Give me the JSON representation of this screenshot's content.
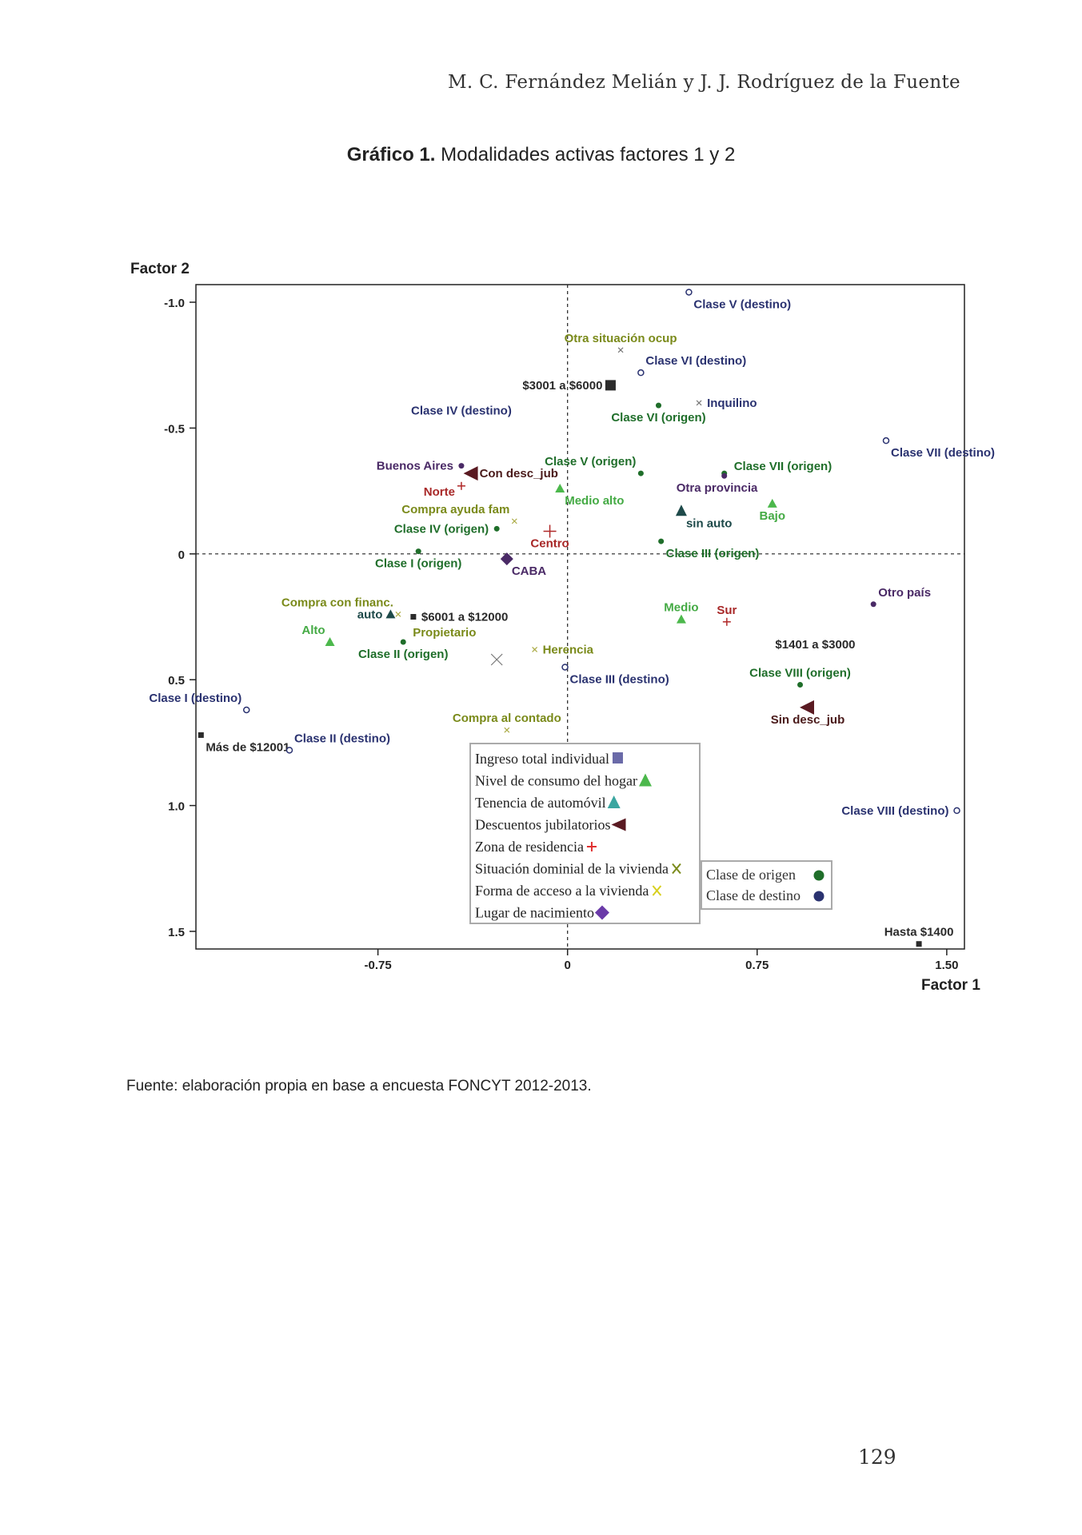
{
  "header": {
    "running_head": "M. C. Fernández Melián y J. J. Rodríguez de la Fuente"
  },
  "figure": {
    "label": "Gráfico 1.",
    "caption": "Modalidades activas factores 1 y 2"
  },
  "source": "Fuente: elaboración propia en base a encuesta FONCYT 2012-2013.",
  "page_number": "129",
  "colors": {
    "ingreso": "#2b2b2b",
    "consumo": "#4cb84c",
    "automovil": "#1e4a4a",
    "descuentos": "#5a1a22",
    "zona": "#b02828",
    "situacion": "#777777",
    "forma": "#aaaa44",
    "nacimiento": "#4a2a66",
    "origen": "#1f6e2a",
    "destino": "#2a3270",
    "label_olive": "#7a8a1a",
    "label_green": "#44aa44",
    "label_red": "#a82828",
    "label_dark": "#2a2a2a",
    "label_teal": "#1e4a4a",
    "label_purple": "#4a2a66",
    "label_maroon": "#4a1a1a"
  },
  "chart_data": {
    "type": "scatter",
    "xlabel": "Factor 1",
    "ylabel": "Factor 2",
    "xlim": [
      -1.47,
      1.57
    ],
    "ylim": [
      -1.07,
      1.57
    ],
    "y_inverted": true,
    "xticks": [
      -0.75,
      0,
      0.75,
      1.5
    ],
    "xtick_labels": [
      "-0.75",
      "0",
      "0.75",
      "1.50"
    ],
    "yticks": [
      -1.0,
      -0.5,
      0,
      0.5,
      1.0,
      1.5
    ],
    "ytick_labels": [
      "-1.0",
      "-0.5",
      "0",
      "0.5",
      "1.0",
      "1.5"
    ],
    "reference_lines": [
      0,
      0
    ],
    "points": [
      {
        "label": "Clase V (destino)",
        "x": 0.48,
        "y": -1.04,
        "group": "destino",
        "marker": "open-circle",
        "label_color": "destino",
        "anchor": "below-right"
      },
      {
        "label": "Otra situación ocup",
        "x": 0.21,
        "y": -0.81,
        "group": "situacion",
        "marker": "x-small",
        "label_color": "label_olive",
        "anchor": "above"
      },
      {
        "label": "Clase VI (destino)",
        "x": 0.29,
        "y": -0.72,
        "group": "destino",
        "marker": "open-circle",
        "label_color": "destino",
        "anchor": "above-right"
      },
      {
        "label": "$3001 a $6000",
        "x": 0.17,
        "y": -0.67,
        "group": "ingreso",
        "marker": "square-big",
        "label_color": "label_dark",
        "anchor": "left"
      },
      {
        "label": "Inquilino",
        "x": 0.52,
        "y": -0.6,
        "group": "situacion",
        "marker": "x-small",
        "label_color": "destino",
        "anchor": "right"
      },
      {
        "label": "Clase VI (origen)",
        "x": 0.36,
        "y": -0.59,
        "group": "origen",
        "marker": "dot",
        "label_color": "origen",
        "anchor": "below"
      },
      {
        "label": "Clase IV (destino)",
        "x": -0.42,
        "y": -0.57,
        "group": "destino",
        "marker": "none",
        "label_color": "destino",
        "anchor": "center"
      },
      {
        "label": "Clase VII (destino)",
        "x": 1.26,
        "y": -0.45,
        "group": "destino",
        "marker": "open-circle",
        "label_color": "destino",
        "anchor": "below-right"
      },
      {
        "label": "Clase V (origen)",
        "x": 0.29,
        "y": -0.32,
        "group": "origen",
        "marker": "dot",
        "label_color": "origen",
        "anchor": "above-left"
      },
      {
        "label": "Clase VII (origen)",
        "x": 0.62,
        "y": -0.32,
        "group": "origen",
        "marker": "dot",
        "label_color": "origen",
        "anchor": "right-up"
      },
      {
        "label": "Buenos Aires",
        "x": -0.42,
        "y": -0.35,
        "group": "nacimiento",
        "marker": "dot",
        "label_color": "label_purple",
        "anchor": "left"
      },
      {
        "label": "Con desc_jub",
        "x": -0.38,
        "y": -0.32,
        "group": "descuentos",
        "marker": "triangle-left",
        "label_color": "label_maroon",
        "anchor": "right"
      },
      {
        "label": "Norte",
        "x": -0.42,
        "y": -0.27,
        "group": "zona",
        "marker": "plus-small",
        "label_color": "label_red",
        "anchor": "left-down"
      },
      {
        "label": "Otra provincia",
        "x": 0.62,
        "y": -0.31,
        "group": "nacimiento",
        "marker": "dot",
        "label_color": "label_purple",
        "anchor": "below-left"
      },
      {
        "label": "Medio alto",
        "x": -0.03,
        "y": -0.26,
        "group": "consumo",
        "marker": "triangle-up",
        "label_color": "label_green",
        "anchor": "below-right"
      },
      {
        "label": "Bajo",
        "x": 0.81,
        "y": -0.2,
        "group": "consumo",
        "marker": "triangle-up",
        "label_color": "label_green",
        "anchor": "below"
      },
      {
        "label": "sin auto",
        "x": 0.45,
        "y": -0.17,
        "group": "automovil",
        "marker": "triangle-up-big",
        "label_color": "label_teal",
        "anchor": "below-right"
      },
      {
        "label": "Compra ayuda fam",
        "x": -0.21,
        "y": -0.13,
        "group": "forma",
        "marker": "x-small",
        "label_color": "label_olive",
        "anchor": "above-left"
      },
      {
        "label": "Clase IV (origen)",
        "x": -0.28,
        "y": -0.1,
        "group": "origen",
        "marker": "dot",
        "label_color": "origen",
        "anchor": "left"
      },
      {
        "label": "Centro",
        "x": -0.07,
        "y": -0.09,
        "group": "zona",
        "marker": "plus-big",
        "label_color": "label_red",
        "anchor": "below"
      },
      {
        "label": "Clase III (origen)",
        "x": 0.37,
        "y": -0.05,
        "group": "origen",
        "marker": "dot",
        "label_color": "origen",
        "anchor": "below-right"
      },
      {
        "label": "Clase I (origen)",
        "x": -0.59,
        "y": -0.01,
        "group": "origen",
        "marker": "dot",
        "label_color": "origen",
        "anchor": "below"
      },
      {
        "label": "CABA",
        "x": -0.24,
        "y": 0.02,
        "group": "nacimiento",
        "marker": "diamond",
        "label_color": "label_purple",
        "anchor": "below-right"
      },
      {
        "label": "Otro país",
        "x": 1.21,
        "y": 0.2,
        "group": "nacimiento",
        "marker": "dot",
        "label_color": "label_purple",
        "anchor": "above-right"
      },
      {
        "label": "Compra con financ.",
        "x": -0.67,
        "y": 0.24,
        "group": "forma",
        "marker": "x-small",
        "label_color": "label_olive",
        "anchor": "above-left"
      },
      {
        "label": "auto",
        "x": -0.7,
        "y": 0.24,
        "group": "automovil",
        "marker": "triangle-up",
        "label_color": "label_teal",
        "anchor": "left"
      },
      {
        "label": "$6001 a $12000",
        "x": -0.61,
        "y": 0.25,
        "group": "ingreso",
        "marker": "square",
        "label_color": "label_dark",
        "anchor": "right"
      },
      {
        "label": "Medio",
        "x": 0.45,
        "y": 0.26,
        "group": "consumo",
        "marker": "triangle-up",
        "label_color": "label_green",
        "anchor": "above"
      },
      {
        "label": "Sur",
        "x": 0.63,
        "y": 0.27,
        "group": "zona",
        "marker": "plus-small",
        "label_color": "label_red",
        "anchor": "above"
      },
      {
        "label": "Alto",
        "x": -0.94,
        "y": 0.35,
        "group": "consumo",
        "marker": "triangle-up",
        "label_color": "label_green",
        "anchor": "above-left"
      },
      {
        "label": "Propietario",
        "x": -0.65,
        "y": 0.34,
        "group": "situacion",
        "marker": "none",
        "label_color": "label_olive",
        "anchor": "right-up"
      },
      {
        "label": "Clase II (origen)",
        "x": -0.65,
        "y": 0.35,
        "group": "origen",
        "marker": "dot",
        "label_color": "origen",
        "anchor": "below"
      },
      {
        "label": "Herencia",
        "x": -0.13,
        "y": 0.38,
        "group": "forma",
        "marker": "x-small",
        "label_color": "label_olive",
        "anchor": "right"
      },
      {
        "label": "",
        "x": -0.28,
        "y": 0.42,
        "group": "situacion",
        "marker": "x-big",
        "label_color": "label_olive",
        "anchor": "none"
      },
      {
        "label": "$1401 a $3000",
        "x": 0.98,
        "y": 0.36,
        "group": "ingreso",
        "marker": "none",
        "label_color": "label_dark",
        "anchor": "center"
      },
      {
        "label": "Clase III (destino)",
        "x": -0.01,
        "y": 0.45,
        "group": "destino",
        "marker": "open-circle",
        "label_color": "destino",
        "anchor": "below-right"
      },
      {
        "label": "Clase VIII (origen)",
        "x": 0.92,
        "y": 0.52,
        "group": "origen",
        "marker": "dot",
        "label_color": "origen",
        "anchor": "above"
      },
      {
        "label": "Clase I (destino)",
        "x": -1.27,
        "y": 0.62,
        "group": "destino",
        "marker": "open-circle",
        "label_color": "destino",
        "anchor": "above-left"
      },
      {
        "label": "Sin desc_jub",
        "x": 0.95,
        "y": 0.61,
        "group": "descuentos",
        "marker": "triangle-left",
        "label_color": "label_maroon",
        "anchor": "below"
      },
      {
        "label": "Compra al contado",
        "x": -0.24,
        "y": 0.7,
        "group": "forma",
        "marker": "x-small",
        "label_color": "label_olive",
        "anchor": "above"
      },
      {
        "label": "Más de $12001",
        "x": -1.45,
        "y": 0.72,
        "group": "ingreso",
        "marker": "square",
        "label_color": "label_dark",
        "anchor": "below-right"
      },
      {
        "label": "Clase II (destino)",
        "x": -1.1,
        "y": 0.78,
        "group": "destino",
        "marker": "open-circle",
        "label_color": "destino",
        "anchor": "above-right"
      },
      {
        "label": "Clase VIII (destino)",
        "x": 1.54,
        "y": 1.02,
        "group": "destino",
        "marker": "open-circle",
        "label_color": "destino",
        "anchor": "left"
      },
      {
        "label": "Hasta $1400",
        "x": 1.39,
        "y": 1.55,
        "group": "ingreso",
        "marker": "square",
        "label_color": "label_dark",
        "anchor": "above"
      }
    ],
    "legend": {
      "placement": "bottom-center",
      "entries": [
        {
          "label": "Ingreso total individual",
          "marker": "square",
          "color": "ingreso_legend"
        },
        {
          "label": "Nivel de consumo del hogar",
          "marker": "triangle-up",
          "color": "consumo"
        },
        {
          "label": "Tenencia de automóvil",
          "marker": "triangle-up",
          "color": "automovil_legend"
        },
        {
          "label": "Descuentos jubilatorios",
          "marker": "triangle-left",
          "color": "descuentos"
        },
        {
          "label": "Zona de residencia",
          "marker": "plus",
          "color": "zona_legend"
        },
        {
          "label": "Situación dominial de la vivienda",
          "marker": "x",
          "color": "situacion_legend"
        },
        {
          "label": "Forma de acceso a la vivienda",
          "marker": "x",
          "color": "forma_legend"
        },
        {
          "label": "Lugar de nacimiento",
          "marker": "diamond",
          "color": "nacimiento_legend"
        }
      ],
      "colors": {
        "ingreso_legend": "#6a6aa8",
        "automovil_legend": "#3aa6a0",
        "zona_legend": "#e03030",
        "situacion_legend": "#7a8a1a",
        "forma_legend": "#d8d020",
        "nacimiento_legend": "#6a3aa8"
      }
    },
    "legend2": {
      "placement": "bottom-right",
      "entries": [
        {
          "label": "Clase de origen",
          "color": "#1f6e2a"
        },
        {
          "label": "Clase de destino",
          "color": "#2a3270"
        }
      ]
    }
  }
}
